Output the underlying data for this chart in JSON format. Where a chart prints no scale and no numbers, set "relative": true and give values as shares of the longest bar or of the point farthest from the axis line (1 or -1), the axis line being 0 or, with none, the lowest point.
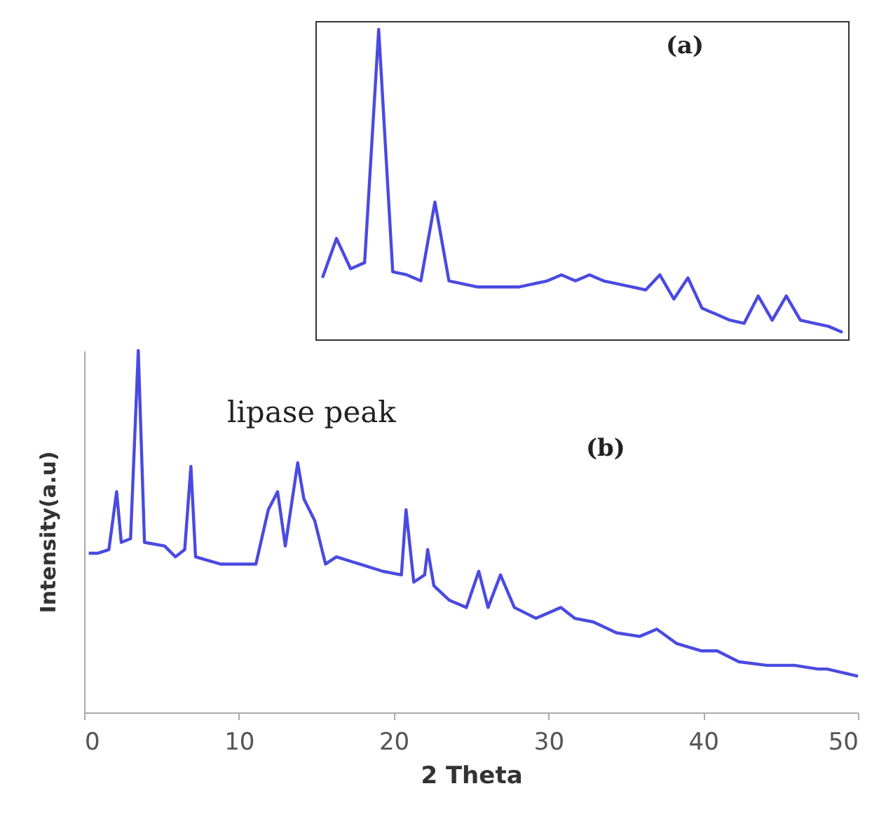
{
  "chart_data": [
    {
      "type": "line",
      "relative": true,
      "tick_labels": false,
      "color": "#4a4ae0",
      "annotations": [
        "(a)"
      ],
      "categories": [
        null,
        null,
        null,
        null,
        null,
        null,
        null,
        null,
        null,
        null,
        null,
        null,
        null,
        null,
        null,
        null,
        null,
        null,
        null,
        null,
        null,
        null,
        null,
        null,
        null,
        null,
        null,
        null,
        null,
        null,
        null,
        null,
        null,
        null,
        null,
        null,
        null,
        null
      ],
      "values": [
        0.18,
        0.31,
        0.21,
        0.23,
        1.0,
        0.2,
        0.19,
        0.17,
        0.43,
        0.17,
        0.16,
        0.15,
        0.15,
        0.15,
        0.15,
        0.16,
        0.17,
        0.19,
        0.17,
        0.19,
        0.17,
        0.16,
        0.15,
        0.14,
        0.19,
        0.11,
        0.18,
        0.08,
        0.06,
        0.04,
        0.03,
        0.12,
        0.04,
        0.12,
        0.04,
        0.03,
        0.02,
        0
      ]
    },
    {
      "type": "line",
      "relative": true,
      "tick_labels": "x",
      "color": "#4a4ae0",
      "xlabel": "2 Theta",
      "ylabel": "Intensity(a.u)",
      "annotations": [
        "lipase peak",
        "(b)"
      ],
      "xlim": [
        0,
        50
      ],
      "xticks": [
        0,
        10,
        20,
        30,
        40,
        50
      ],
      "x": [
        0.3,
        0.9,
        1.6,
        2.1,
        2.4,
        3.0,
        3.5,
        3.9,
        5.2,
        5.9,
        6.5,
        6.9,
        7.2,
        8.8,
        11.1,
        11.9,
        12.5,
        13.0,
        13.8,
        14.2,
        14.9,
        15.6,
        16.3,
        17.8,
        19.3,
        20.5,
        20.8,
        21.3,
        22.0,
        22.2,
        22.6,
        23.6,
        24.7,
        25.5,
        26.1,
        26.9,
        27.8,
        29.2,
        30.8,
        31.7,
        32.9,
        34.4,
        35.9,
        37.0,
        38.3,
        39.9,
        40.9,
        42.3,
        44.1,
        45.9,
        47.4,
        48.0,
        50.0
      ],
      "values": [
        0.44,
        0.44,
        0.45,
        0.61,
        0.47,
        0.48,
        1.0,
        0.47,
        0.46,
        0.43,
        0.45,
        0.68,
        0.43,
        0.41,
        0.41,
        0.56,
        0.61,
        0.46,
        0.69,
        0.59,
        0.53,
        0.41,
        0.43,
        0.41,
        0.39,
        0.38,
        0.56,
        0.36,
        0.38,
        0.45,
        0.35,
        0.31,
        0.29,
        0.39,
        0.29,
        0.38,
        0.29,
        0.26,
        0.29,
        0.26,
        0.25,
        0.22,
        0.21,
        0.23,
        0.19,
        0.17,
        0.17,
        0.14,
        0.13,
        0.13,
        0.12,
        0.12,
        0.1
      ]
    }
  ]
}
